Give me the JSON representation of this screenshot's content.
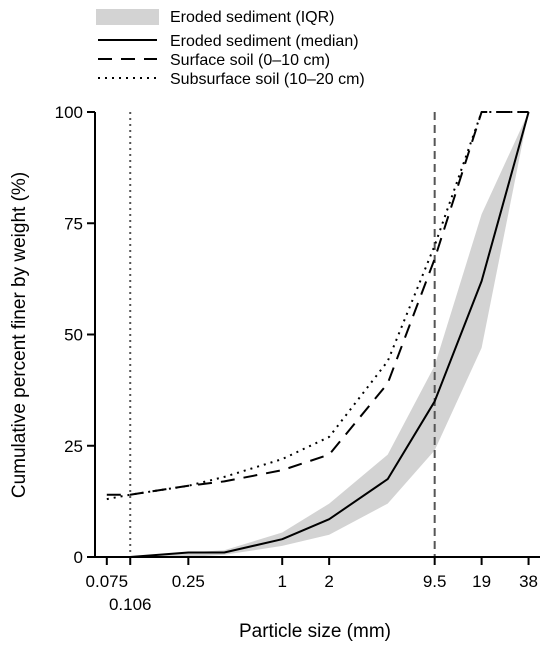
{
  "chart_data": {
    "type": "line",
    "xscale": "log",
    "xlabel": "Particle size (mm)",
    "ylabel": "Cumulative percent finer by weight (%)",
    "xlim": [
      0.063,
      45
    ],
    "ylim": [
      0,
      100
    ],
    "xticks": [
      {
        "value": 0.075,
        "label": "0.075"
      },
      {
        "value": 0.106,
        "label": "0.106"
      },
      {
        "value": 0.25,
        "label": "0.25"
      },
      {
        "value": 1,
        "label": "1"
      },
      {
        "value": 2,
        "label": "2"
      },
      {
        "value": 9.5,
        "label": "9.5"
      },
      {
        "value": 19,
        "label": "19"
      },
      {
        "value": 38,
        "label": "38"
      }
    ],
    "yticks": [
      {
        "value": 0,
        "label": "0"
      },
      {
        "value": 25,
        "label": "25"
      },
      {
        "value": 50,
        "label": "50"
      },
      {
        "value": 75,
        "label": "75"
      },
      {
        "value": 100,
        "label": "100"
      }
    ],
    "reference_lines": [
      {
        "x": 0.106,
        "style": "dotted",
        "color": "#555555"
      },
      {
        "x": 9.5,
        "style": "dashed",
        "color": "#555555"
      }
    ],
    "band": {
      "name": "Eroded sediment (IQR)",
      "x": [
        0.106,
        0.25,
        0.425,
        1,
        2,
        4.75,
        9.5,
        19,
        38
      ],
      "lower": [
        0,
        0,
        0.5,
        2.5,
        5,
        12,
        24,
        47,
        100
      ],
      "upper": [
        0,
        1,
        1.5,
        5.5,
        12,
        23,
        43,
        77,
        100
      ],
      "color": "#d3d3d3"
    },
    "series": [
      {
        "name": "Eroded sediment (median)",
        "style": "solid",
        "x": [
          0.106,
          0.25,
          0.425,
          1,
          2,
          4.75,
          9.5,
          19,
          38
        ],
        "y": [
          0,
          1,
          1,
          4,
          8.5,
          17.5,
          35,
          62,
          100
        ]
      },
      {
        "name": "Surface soil (0–10 cm)",
        "style": "dashed",
        "x": [
          0.075,
          0.106,
          0.25,
          0.425,
          1,
          2,
          4.75,
          9.5,
          19,
          38
        ],
        "y": [
          14,
          14,
          16,
          17,
          19.5,
          23,
          39,
          67,
          100,
          100
        ]
      },
      {
        "name": "Subsurface soil (10–20 cm)",
        "style": "dotted",
        "x": [
          0.075,
          0.106,
          0.25,
          0.425,
          1,
          2,
          4.75,
          9.5,
          19,
          38
        ],
        "y": [
          13,
          14,
          16,
          18,
          22,
          27,
          44,
          70,
          100,
          100
        ]
      }
    ],
    "legend": {
      "placement": "top",
      "entries": [
        {
          "label": "Eroded sediment (IQR)",
          "kind": "band"
        },
        {
          "label": "Eroded sediment (median)",
          "kind": "solid"
        },
        {
          "label": "Surface soil (0–10 cm)",
          "kind": "dashed"
        },
        {
          "label": "Subsurface soil (10–20 cm)",
          "kind": "dotted"
        }
      ]
    },
    "grid": false
  }
}
